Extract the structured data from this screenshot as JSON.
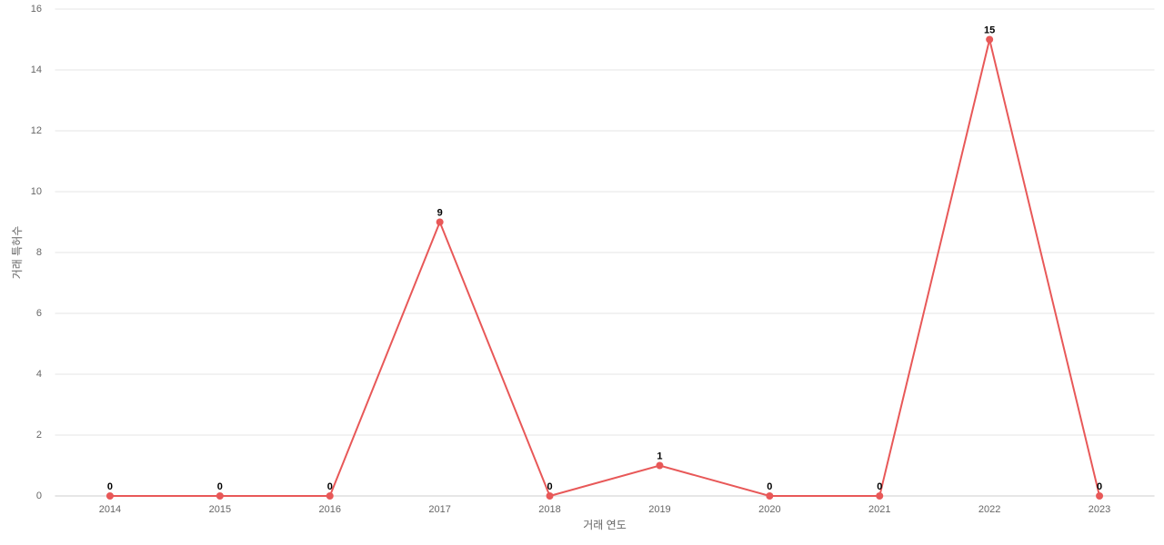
{
  "chart_data": {
    "type": "line",
    "categories": [
      "2014",
      "2015",
      "2016",
      "2017",
      "2018",
      "2019",
      "2020",
      "2021",
      "2022",
      "2023"
    ],
    "series": [
      {
        "name": "거래 특허수",
        "color": "#e85858",
        "values": [
          0,
          0,
          0,
          9,
          0,
          1,
          0,
          0,
          15,
          0
        ]
      }
    ],
    "x_label": "거래 연도",
    "y_label": "거래 특허수",
    "ylim": [
      0,
      16
    ],
    "yticks": [
      0,
      2,
      4,
      6,
      8,
      10,
      12,
      14,
      16
    ],
    "grid": true
  }
}
